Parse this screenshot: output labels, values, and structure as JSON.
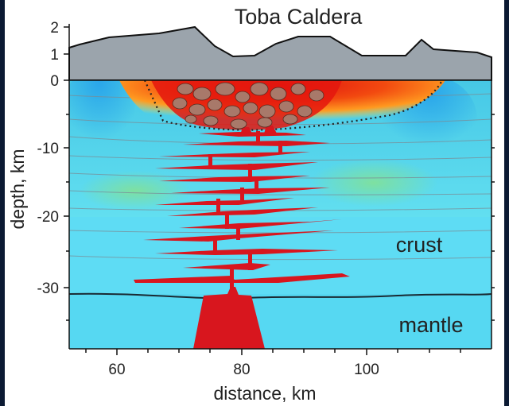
{
  "title": "Toba Caldera",
  "axes": {
    "x_label": "distance, km",
    "y_label": "depth, km",
    "x_ticks": [
      "60",
      "80",
      "100"
    ],
    "y_ticks": [
      "2",
      "1",
      "0",
      "-10",
      "-20",
      "-30"
    ]
  },
  "layers": {
    "crust_label": "crust",
    "mantle_label": "mantle"
  },
  "scene": {
    "x_range_km": [
      52,
      120
    ],
    "elevation_range_km": [
      0,
      2
    ],
    "depth_range_km": [
      0,
      -38
    ],
    "moho_depth_km": -31,
    "tomography_section_bottom_km": -20
  },
  "colors": {
    "topography": "#9ba4ac",
    "crust": "#60e0f6",
    "mantle": "#58dcf4",
    "anomaly_hot": "#e8140c",
    "anomaly_warm": "#ff8c1a",
    "magma": "#d8161e",
    "caldera_outline": "#222222",
    "frame": "#0b1a33"
  }
}
